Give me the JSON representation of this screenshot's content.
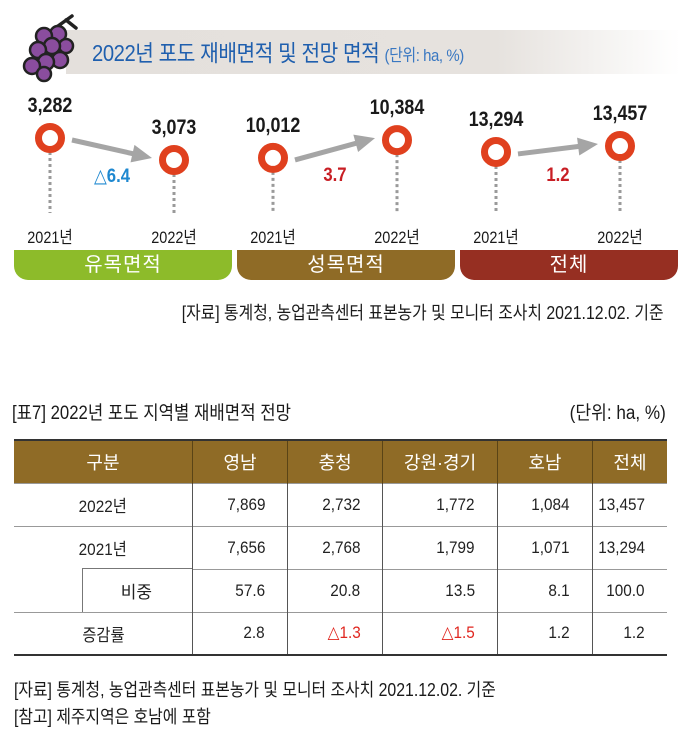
{
  "header": {
    "title": "2022년 포도 재배면적 및 전망 면적",
    "unit": "(단위: ha, %)",
    "icon": "grape-icon"
  },
  "chart_data": [
    {
      "type": "line",
      "title": "유목면적",
      "categories": [
        "2021년",
        "2022년"
      ],
      "values": [
        3282,
        3073
      ],
      "value_labels": [
        "3,282",
        "3,073"
      ],
      "change_label": "△6.4",
      "change_value": -6.4,
      "change_color": "#1e88d0",
      "bar_color": "#8dbb2a"
    },
    {
      "type": "line",
      "title": "성목면적",
      "categories": [
        "2021년",
        "2022년"
      ],
      "values": [
        10012,
        10384
      ],
      "value_labels": [
        "10,012",
        "10,384"
      ],
      "change_label": "3.7",
      "change_value": 3.7,
      "change_color": "#c81e24",
      "bar_color": "#8f6b26"
    },
    {
      "type": "line",
      "title": "전체",
      "categories": [
        "2021년",
        "2022년"
      ],
      "values": [
        13294,
        13457
      ],
      "value_labels": [
        "13,294",
        "13,457"
      ],
      "change_label": "1.2",
      "change_value": 1.2,
      "change_color": "#c81e24",
      "bar_color": "#962f22"
    }
  ],
  "colors": {
    "marker": "#e0401e",
    "arrow": "#a5a5a5",
    "title_blue": "#1f5fae",
    "table_header": "#8f6b26",
    "negative": "#e0261f"
  },
  "source_top": "[자료] 통계청, 농업관측센터 표본농가 및 모니터 조사치 2021.12.02. 기준",
  "table": {
    "title": "[표7] 2022년 포도 지역별 재배면적 전망",
    "unit": "(단위: ha, %)",
    "headers": [
      "구분",
      "영남",
      "충청",
      "강원·경기",
      "호남",
      "전체"
    ],
    "rows": [
      {
        "label": "2022년",
        "cells": [
          "7,869",
          "2,732",
          "1,772",
          "1,084",
          "13,457"
        ]
      },
      {
        "label": "2021년",
        "cells": [
          "7,656",
          "2,768",
          "1,799",
          "1,071",
          "13,294"
        ]
      },
      {
        "label": "비중",
        "cells": [
          "57.6",
          "20.8",
          "13.5",
          "8.1",
          "100.0"
        ]
      },
      {
        "label": "증감률",
        "cells": [
          "2.8",
          "△1.3",
          "△1.5",
          "1.2",
          "1.2"
        ]
      }
    ]
  },
  "notes": {
    "source": "[자료] 통계청, 농업관측센터 표본농가 및 모니터 조사치 2021.12.02. 기준",
    "reference": "[참고] 제주지역은 호남에 포함"
  }
}
